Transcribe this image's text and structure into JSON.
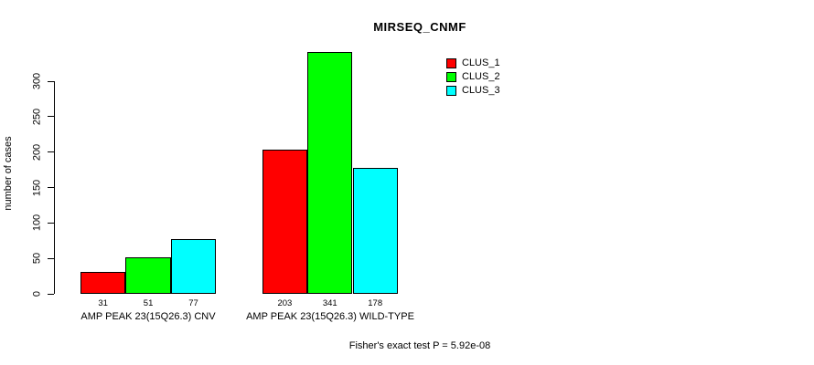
{
  "chart_data": {
    "type": "bar",
    "title": "MIRSEQ_CNMF",
    "xlabel": "",
    "ylabel": "number of cases",
    "categories": [
      "AMP PEAK 23(15Q26.3) CNV",
      "AMP PEAK 23(15Q26.3) WILD-TYPE"
    ],
    "series": [
      {
        "name": "CLUS_1",
        "color": "#FF0000",
        "values": [
          31,
          203
        ]
      },
      {
        "name": "CLUS_2",
        "color": "#00FF00",
        "values": [
          51,
          341
        ]
      },
      {
        "name": "CLUS_3",
        "color": "#00FFFF",
        "values": [
          77,
          178
        ]
      }
    ],
    "bar_value_labels": [
      [
        "31",
        "51",
        "77"
      ],
      [
        "203",
        "341",
        "178"
      ]
    ],
    "yticks": [
      0,
      50,
      100,
      150,
      200,
      250,
      300
    ],
    "ylim": [
      0,
      341
    ],
    "grid": false,
    "legend_position": "top-right",
    "annotation": "Fisher's exact test P = 5.92e-08"
  },
  "colors": {
    "background": "#FFFFFF",
    "axis": "#000000",
    "bar_border": "#000000"
  }
}
